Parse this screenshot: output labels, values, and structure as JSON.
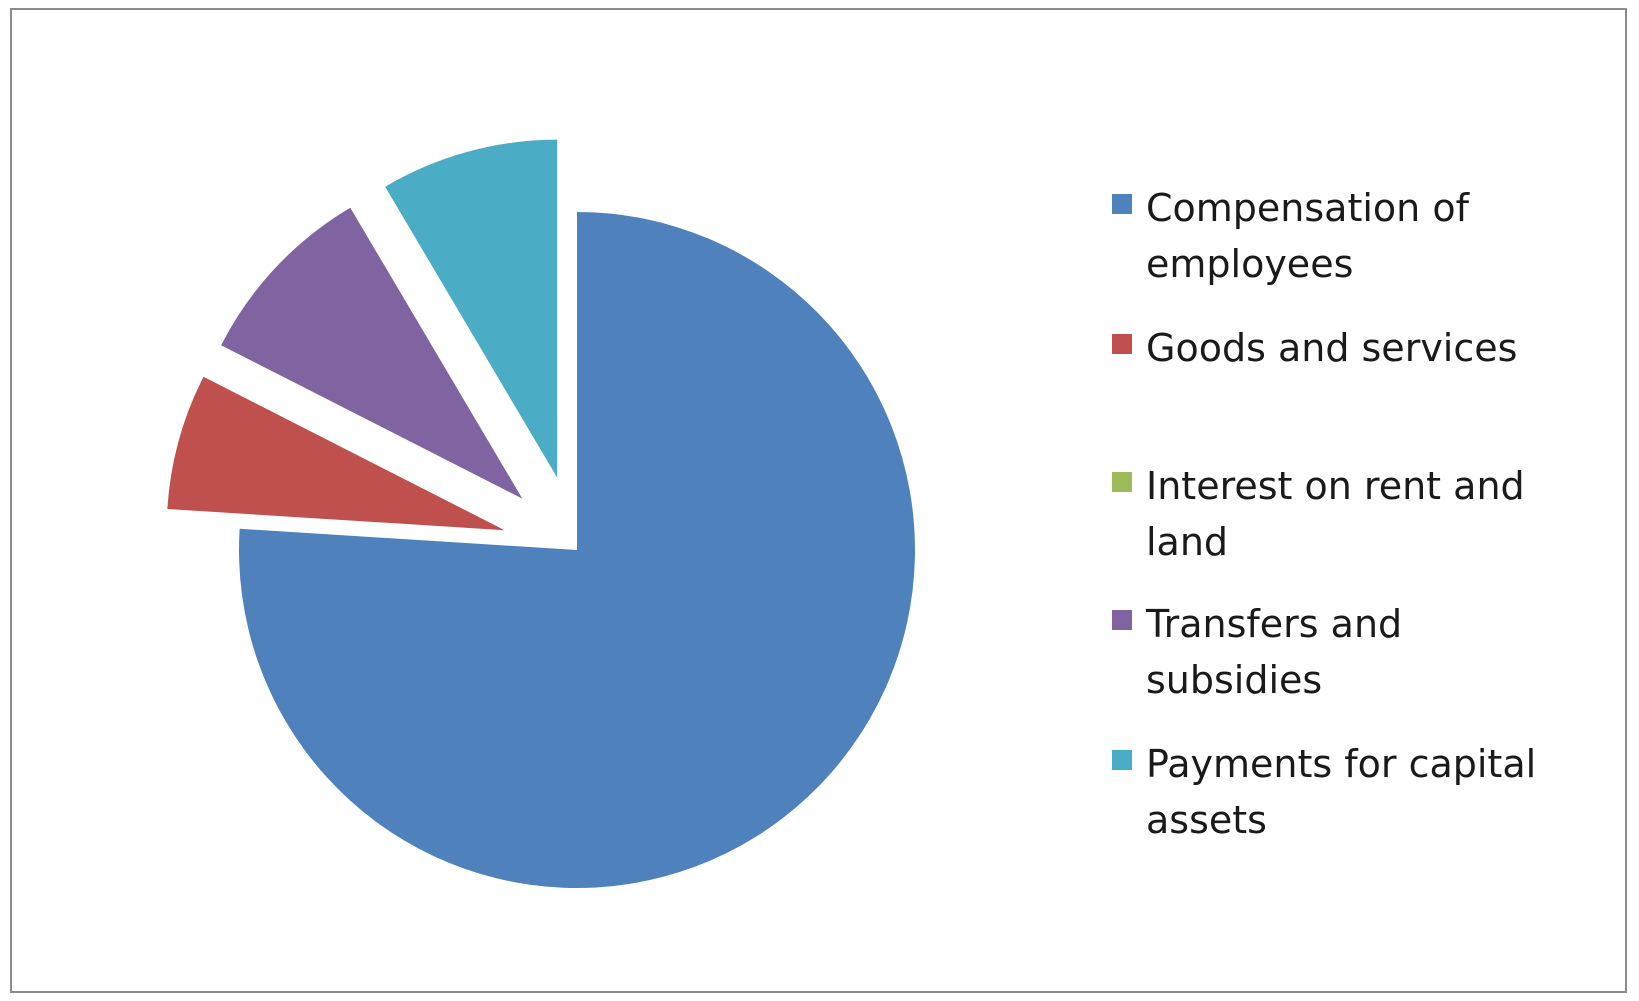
{
  "chart_data": {
    "type": "pie",
    "title": "",
    "exploded": true,
    "legend_position": "right",
    "slices": [
      {
        "name": "Compensation of employees",
        "value": 76.0,
        "color": "#4f81bd"
      },
      {
        "name": "Goods and services",
        "value": 6.5,
        "color": "#c0504d"
      },
      {
        "name": "Interest on rent and land",
        "value": 0.0,
        "color": "#9bbb59"
      },
      {
        "name": "Transfers and subsidies",
        "value": 9.0,
        "color": "#8064a2"
      },
      {
        "name": "Payments for capital assets",
        "value": 8.5,
        "color": "#4bacc6"
      }
    ]
  },
  "legend": {
    "items": [
      {
        "label": "Compensation of employees",
        "color": "#4f81bd"
      },
      {
        "label": "Goods and services",
        "color": "#c0504d"
      },
      {
        "label": "Interest on rent and land",
        "color": "#9bbb59"
      },
      {
        "label": "Transfers and subsidies",
        "color": "#8064a2"
      },
      {
        "label": "Payments for capital assets",
        "color": "#4bacc6"
      }
    ]
  }
}
